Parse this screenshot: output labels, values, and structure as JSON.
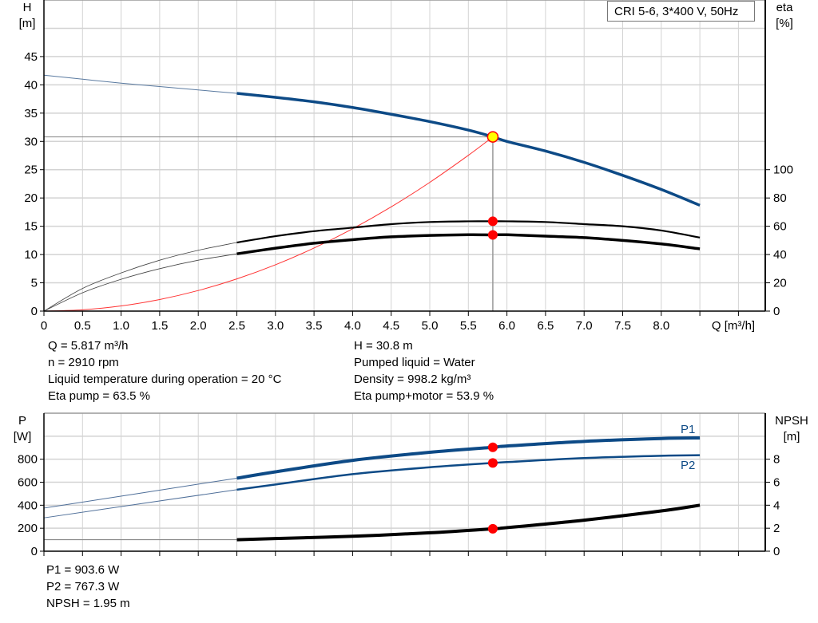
{
  "legend": "CRI 5-6, 3*400 V, 50Hz",
  "colors": {
    "head": "#0d4a86",
    "power": "#0d4a86",
    "eta": "#000000",
    "npsh": "#000000",
    "system": "#ff3333",
    "marker": "#ff0000",
    "duty_fill": "#ffff00",
    "grid": "#d3d3d3"
  },
  "info_top": {
    "left": [
      "Q = 5.817 m³/h",
      "n = 2910 rpm",
      "Liquid temperature during operation = 20 °C",
      "Eta pump = 63.5 %"
    ],
    "right": [
      "H = 30.8 m",
      "Pumped liquid = Water",
      "Density = 998.2 kg/m³",
      "Eta pump+motor = 53.9 %"
    ]
  },
  "info_bottom": [
    "P1 = 903.6 W",
    "P2 = 767.3 W",
    "NPSH = 1.95 m"
  ],
  "chart_data": [
    {
      "type": "line",
      "title": "",
      "xlabel": "Q [m³/h]",
      "ylabel_left": [
        "H",
        "[m]"
      ],
      "ylabel_right": [
        "eta",
        "[%]"
      ],
      "xlim": [
        0,
        9.35
      ],
      "ylim_left": [
        0,
        55
      ],
      "ylim_right": [
        0,
        220
      ],
      "x_ticks": [
        "0",
        "0.5",
        "1.0",
        "1.5",
        "2.0",
        "2.5",
        "3.0",
        "3.5",
        "4.0",
        "4.5",
        "5.0",
        "5.5",
        "6.0",
        "6.5",
        "7.0",
        "7.5",
        "8.0"
      ],
      "y_ticks_left": [
        "0",
        "5",
        "10",
        "15",
        "20",
        "25",
        "30",
        "35",
        "40",
        "45"
      ],
      "y_ticks_right": [
        "0",
        "20",
        "40",
        "60",
        "80",
        "100"
      ],
      "grid": true,
      "duty_point": {
        "Q": 5.817,
        "H": 30.8,
        "eta_pump": 63.5,
        "eta_total": 53.9
      },
      "series": [
        {
          "key": "H",
          "axis": "left",
          "x": [
            0,
            0.5,
            1,
            1.5,
            2,
            2.5,
            3,
            3.5,
            4,
            4.5,
            5,
            5.5,
            5.817,
            6,
            6.5,
            7,
            7.5,
            8,
            8.5
          ],
          "y": [
            41.7,
            41.0,
            40.3,
            39.7,
            39.1,
            38.5,
            37.8,
            37.0,
            36.0,
            34.8,
            33.5,
            32.0,
            30.8,
            30.0,
            28.3,
            26.3,
            24.0,
            21.5,
            18.7
          ]
        },
        {
          "key": "eta_pump",
          "axis": "right",
          "x": [
            0,
            0.5,
            1,
            1.5,
            2,
            2.5,
            3,
            3.5,
            4,
            4.5,
            5,
            5.5,
            5.817,
            6,
            6.5,
            7,
            7.5,
            8,
            8.5
          ],
          "y": [
            0,
            16,
            27,
            36,
            43,
            48.5,
            53,
            56.5,
            59,
            61.5,
            63,
            63.5,
            63.5,
            63.5,
            63,
            61.5,
            60,
            57,
            52
          ]
        },
        {
          "key": "eta_total",
          "axis": "right",
          "x": [
            0,
            0.5,
            1,
            1.5,
            2,
            2.5,
            3,
            3.5,
            4,
            4.5,
            5,
            5.5,
            5.817,
            6,
            6.5,
            7,
            7.5,
            8,
            8.5
          ],
          "y": [
            0,
            13,
            22.5,
            30,
            36,
            40.5,
            44.5,
            48,
            50.5,
            52.5,
            53.5,
            54,
            53.9,
            54,
            53,
            52,
            50,
            47.5,
            44
          ]
        },
        {
          "key": "system",
          "axis": "left",
          "x": [
            0,
            0.5,
            1,
            1.5,
            2,
            2.5,
            3,
            3.5,
            4,
            4.5,
            5,
            5.5,
            5.817
          ],
          "y": [
            0,
            0.23,
            0.91,
            2.05,
            3.64,
            5.69,
            8.19,
            11.15,
            14.56,
            18.43,
            22.76,
            27.54,
            30.8
          ]
        }
      ]
    },
    {
      "type": "line",
      "title": "",
      "ylabel_left": [
        "P",
        "[W]"
      ],
      "ylabel_right": [
        "NPSH",
        "[m]"
      ],
      "xlim": [
        0,
        9.35
      ],
      "ylim_left": [
        0,
        1200
      ],
      "ylim_right": [
        0,
        12
      ],
      "y_ticks_left": [
        "0",
        "200",
        "400",
        "600",
        "800"
      ],
      "y_ticks_right": [
        "0",
        "2",
        "4",
        "6",
        "8"
      ],
      "grid": true,
      "duty_point": {
        "Q": 5.817,
        "P1": 903.6,
        "P2": 767.3,
        "NPSH": 1.95
      },
      "series": [
        {
          "key": "P1",
          "name": "P1",
          "axis": "left",
          "x": [
            0,
            2.5,
            3,
            4,
            5,
            5.817,
            6,
            7,
            8,
            8.5
          ],
          "y": [
            375,
            635,
            690,
            790,
            860,
            903.6,
            915,
            955,
            980,
            985
          ]
        },
        {
          "key": "P2",
          "name": "P2",
          "axis": "left",
          "x": [
            0,
            2.5,
            3,
            4,
            5,
            5.817,
            6,
            7,
            8,
            8.5
          ],
          "y": [
            290,
            535,
            580,
            670,
            730,
            767.3,
            775,
            810,
            830,
            835
          ]
        },
        {
          "key": "NPSH",
          "axis": "right",
          "x": [
            0,
            2.5,
            3,
            4,
            5,
            5.817,
            6,
            7,
            8,
            8.5
          ],
          "y": [
            1.0,
            1.0,
            1.1,
            1.3,
            1.6,
            1.95,
            2.05,
            2.7,
            3.5,
            4.0
          ]
        }
      ]
    }
  ]
}
